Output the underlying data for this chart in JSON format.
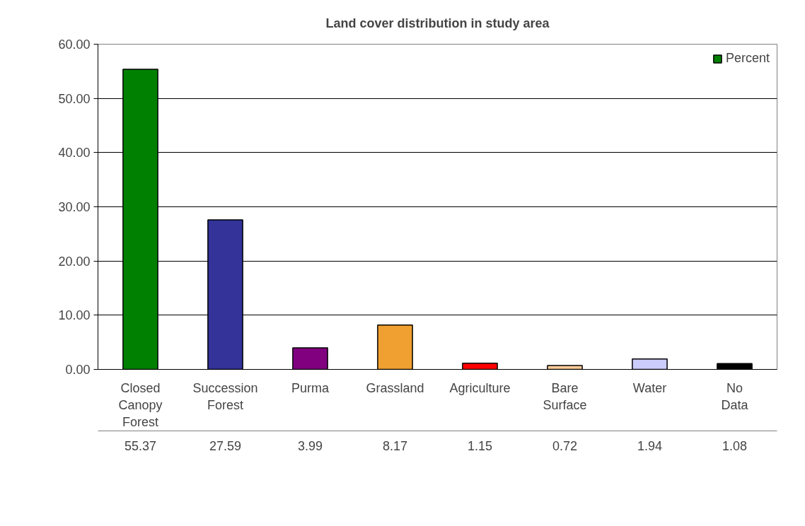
{
  "chart_data": {
    "type": "bar",
    "title": "Land cover distribution in study area",
    "categories": [
      "Closed Canopy Forest",
      "Succession Forest",
      "Purma",
      "Grassland",
      "Agriculture",
      "Bare Surface",
      "Water",
      "No Data"
    ],
    "series": [
      {
        "name": "Percent",
        "values": [
          55.37,
          27.59,
          3.99,
          8.17,
          1.15,
          0.72,
          1.94,
          1.08
        ],
        "colors": [
          "#008000",
          "#333399",
          "#800080",
          "#f0a030",
          "#ff0000",
          "#ffcc99",
          "#ccccff",
          "#000000"
        ]
      }
    ],
    "ylim": [
      0,
      60
    ],
    "yticks": [
      {
        "value": 0,
        "label": "0.00"
      },
      {
        "value": 10,
        "label": "10.00"
      },
      {
        "value": 20,
        "label": "20.00"
      },
      {
        "value": 30,
        "label": "30.00"
      },
      {
        "value": 40,
        "label": "40.00"
      },
      {
        "value": 50,
        "label": "50.00"
      },
      {
        "value": 60,
        "label": "60.00"
      }
    ],
    "grid": "y",
    "legend": "top right",
    "data_labels": true
  }
}
